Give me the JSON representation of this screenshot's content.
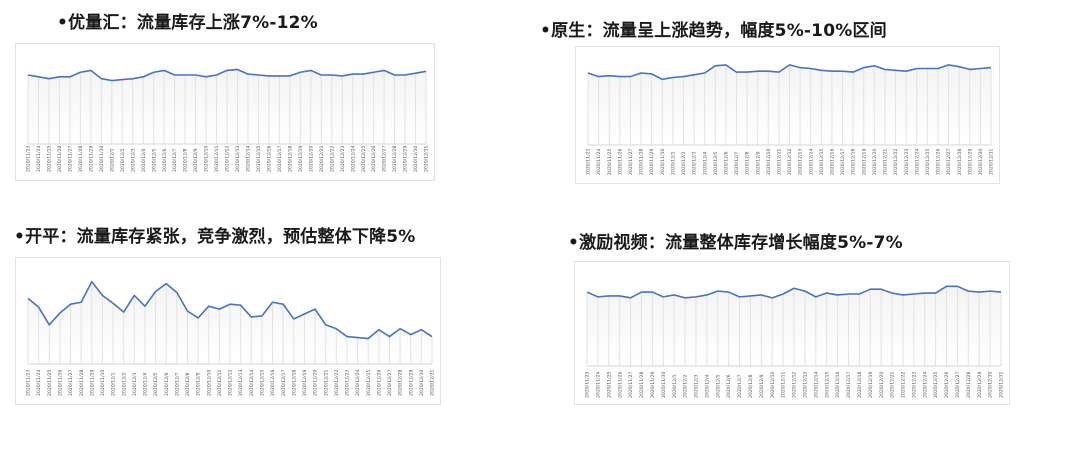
{
  "headings": [
    "•优量汇：流量库存上涨7%-12%",
    "•原生：流量呈上涨趋势，幅度5%-10%区间",
    "•开平：流量库存紧张，竞争激烈，预估整体下降5%",
    "•激励视频：流量整体库存增长幅度5%-7%"
  ],
  "colors": {
    "line": "#4a72c4",
    "grid": "#e2e2e2",
    "border": "#e3e3e3"
  },
  "chart_data": [
    {
      "type": "line",
      "title": "•优量汇：流量库存上涨7%-12%",
      "x": [
        "2020/11/23",
        "2020/11/24",
        "2020/11/25",
        "2020/11/26",
        "2020/11/27",
        "2020/11/28",
        "2020/11/29",
        "2020/11/30",
        "2020/12/1",
        "2020/12/2",
        "2020/12/3",
        "2020/12/4",
        "2020/12/5",
        "2020/12/6",
        "2020/12/7",
        "2020/12/8",
        "2020/12/9",
        "2020/12/10",
        "2020/12/11",
        "2020/12/12",
        "2020/12/13",
        "2020/12/14",
        "2020/12/15",
        "2020/12/16",
        "2020/12/17",
        "2020/12/18",
        "2020/12/19",
        "2020/12/20",
        "2020/12/21",
        "2020/12/22",
        "2020/12/23",
        "2020/12/24",
        "2020/12/25",
        "2020/12/26",
        "2020/12/27",
        "2020/12/28",
        "2020/12/29",
        "2020/12/30",
        "2020/12/31"
      ],
      "values": [
        75,
        73,
        71,
        73,
        73,
        78,
        80,
        71,
        69,
        70,
        71,
        73,
        78,
        80,
        75,
        75,
        75,
        73,
        75,
        80,
        81,
        76,
        75,
        74,
        74,
        74,
        78,
        80,
        75,
        75,
        74,
        76,
        76,
        78,
        80,
        75,
        75,
        77,
        79
      ],
      "ylim": [
        0,
        100
      ],
      "grid": "vertical"
    },
    {
      "type": "line",
      "title": "•原生：流量呈上涨趋势，幅度5%-10%区间",
      "x": [
        "2020/11/23",
        "2020/11/24",
        "2020/11/25",
        "2020/11/26",
        "2020/11/27",
        "2020/11/28",
        "2020/11/29",
        "2020/11/30",
        "2020/12/1",
        "2020/12/2",
        "2020/12/3",
        "2020/12/4",
        "2020/12/5",
        "2020/12/6",
        "2020/12/7",
        "2020/12/8",
        "2020/12/9",
        "2020/12/10",
        "2020/12/11",
        "2020/12/12",
        "2020/12/13",
        "2020/12/14",
        "2020/12/15",
        "2020/12/16",
        "2020/12/17",
        "2020/12/18",
        "2020/12/19",
        "2020/12/20",
        "2020/12/21",
        "2020/12/22",
        "2020/12/23",
        "2020/12/24",
        "2020/12/25",
        "2020/12/26",
        "2020/12/27",
        "2020/12/28",
        "2020/12/29",
        "2020/12/30",
        "2020/12/31"
      ],
      "values": [
        80,
        76,
        77,
        76,
        76,
        80,
        79,
        73,
        75,
        76,
        78,
        80,
        88,
        89,
        81,
        81,
        82,
        82,
        81,
        89,
        86,
        85,
        83,
        82,
        82,
        81,
        86,
        88,
        84,
        83,
        82,
        85,
        85,
        85,
        89,
        87,
        84,
        85,
        86
      ],
      "ylim": [
        0,
        100
      ],
      "grid": "vertical"
    },
    {
      "type": "line",
      "title": "•开平：流量库存紧张，竞争激烈，预估整体下降5%",
      "x": [
        "2020/11/23",
        "2020/11/24",
        "2020/11/25",
        "2020/11/26",
        "2020/11/27",
        "2020/11/28",
        "2020/11/29",
        "2020/11/30",
        "2020/12/1",
        "2020/12/2",
        "2020/12/3",
        "2020/12/4",
        "2020/12/5",
        "2020/12/6",
        "2020/12/7",
        "2020/12/8",
        "2020/12/9",
        "2020/12/10",
        "2020/12/11",
        "2020/12/12",
        "2020/12/13",
        "2020/12/14",
        "2020/12/15",
        "2020/12/16",
        "2020/12/17",
        "2020/12/18",
        "2020/12/19",
        "2020/12/20",
        "2020/12/21",
        "2020/12/22",
        "2020/12/23",
        "2020/12/24",
        "2020/12/25",
        "2020/12/26",
        "2020/12/27",
        "2020/12/28",
        "2020/12/29",
        "2020/12/30",
        "2020/12/31"
      ],
      "values": [
        67,
        58,
        40,
        52,
        61,
        63,
        84,
        70,
        62,
        53,
        70,
        59,
        74,
        82,
        73,
        54,
        47,
        59,
        56,
        61,
        60,
        48,
        49,
        63,
        61,
        46,
        51,
        56,
        40,
        36,
        28,
        27,
        26,
        35,
        28,
        36,
        30,
        35,
        28
      ],
      "ylim": [
        0,
        100
      ],
      "grid": "vertical"
    },
    {
      "type": "line",
      "title": "•激励视频：流量整体库存增长幅度5%-7%",
      "x": [
        "2020/11/23",
        "2020/11/24",
        "2020/11/25",
        "2020/11/26",
        "2020/11/27",
        "2020/11/28",
        "2020/11/29",
        "2020/11/30",
        "2020/12/1",
        "2020/12/2",
        "2020/12/3",
        "2020/12/4",
        "2020/12/5",
        "2020/12/6",
        "2020/12/7",
        "2020/12/8",
        "2020/12/9",
        "2020/12/10",
        "2020/12/11",
        "2020/12/12",
        "2020/12/13",
        "2020/12/14",
        "2020/12/15",
        "2020/12/16",
        "2020/12/17",
        "2020/12/18",
        "2020/12/19",
        "2020/12/20",
        "2020/12/21",
        "2020/12/22",
        "2020/12/23",
        "2020/12/24",
        "2020/12/25",
        "2020/12/26",
        "2020/12/27",
        "2020/12/28",
        "2020/12/29",
        "2020/12/30",
        "2020/12/31"
      ],
      "values": [
        77,
        72,
        73,
        73,
        71,
        77,
        77,
        72,
        74,
        71,
        72,
        74,
        78,
        77,
        72,
        73,
        74,
        71,
        75,
        81,
        78,
        72,
        76,
        74,
        75,
        75,
        80,
        80,
        76,
        74,
        75,
        76,
        76,
        83,
        83,
        78,
        77,
        78,
        77
      ],
      "ylim": [
        0,
        100
      ],
      "grid": "vertical"
    }
  ]
}
